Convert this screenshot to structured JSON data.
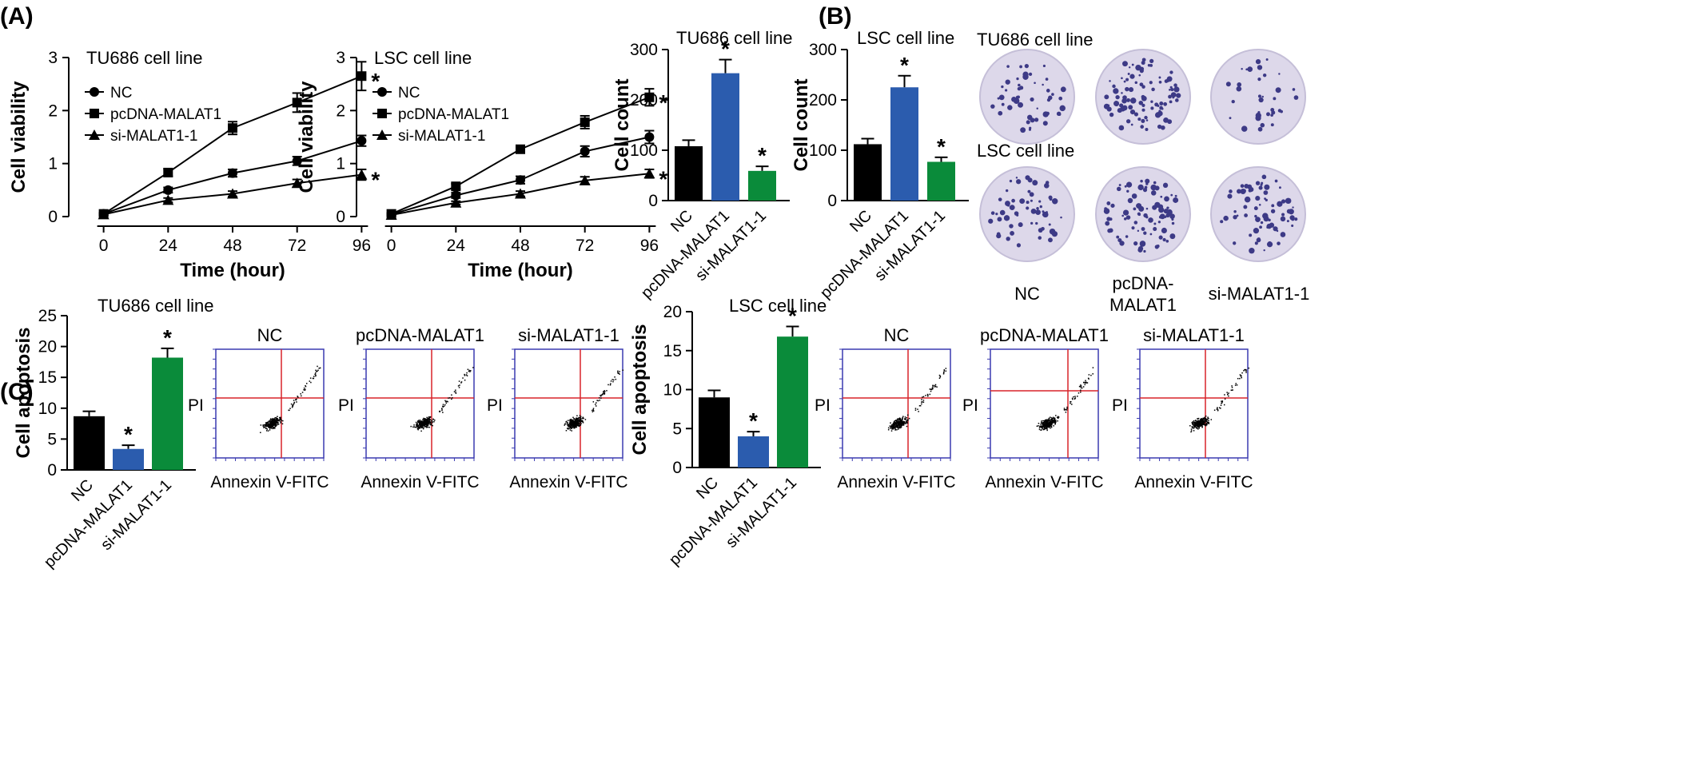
{
  "panel_letters": [
    "(A)",
    "(B)",
    "(C)"
  ],
  "chart_data": [
    {
      "id": "A1",
      "type": "line",
      "title": "TU686 cell line",
      "xlabel": "Time (hour)",
      "ylabel": "Cell viability",
      "x": [
        0,
        24,
        48,
        72,
        96
      ],
      "ylim": [
        0,
        3
      ],
      "yticks": [
        0,
        1,
        2,
        3
      ],
      "legend_position": "top-left",
      "grid": false,
      "series": [
        {
          "name": "NC",
          "marker": "circle",
          "values": [
            0.05,
            0.5,
            0.82,
            1.05,
            1.43
          ],
          "errors": [
            0.02,
            0.05,
            0.07,
            0.08,
            0.1
          ]
        },
        {
          "name": "pcDNA-MALAT1",
          "marker": "square",
          "values": [
            0.05,
            0.83,
            1.67,
            2.15,
            2.65
          ],
          "errors": [
            0.02,
            0.07,
            0.12,
            0.18,
            0.27
          ],
          "star_at_end": "*"
        },
        {
          "name": "si-MALAT1-1",
          "marker": "triangle",
          "values": [
            0.04,
            0.31,
            0.43,
            0.63,
            0.79
          ],
          "errors": [
            0.02,
            0.04,
            0.05,
            0.07,
            0.1
          ],
          "star_at_end": "*"
        }
      ]
    },
    {
      "id": "A2",
      "type": "line",
      "title": "LSC cell line",
      "xlabel": "Time (hour)",
      "ylabel": "Cell viability",
      "x": [
        0,
        24,
        48,
        72,
        96
      ],
      "ylim": [
        0,
        3
      ],
      "yticks": [
        0,
        1,
        2,
        3
      ],
      "legend_position": "top-left",
      "grid": false,
      "series": [
        {
          "name": "NC",
          "marker": "circle",
          "values": [
            0.04,
            0.4,
            0.69,
            1.23,
            1.5
          ],
          "errors": [
            0.02,
            0.05,
            0.07,
            0.1,
            0.12
          ]
        },
        {
          "name": "pcDNA-MALAT1",
          "marker": "square",
          "values": [
            0.05,
            0.57,
            1.27,
            1.78,
            2.25
          ],
          "errors": [
            0.02,
            0.05,
            0.07,
            0.12,
            0.16
          ],
          "star_at_end": "*"
        },
        {
          "name": "si-MALAT1-1",
          "marker": "triangle",
          "values": [
            0.03,
            0.26,
            0.43,
            0.68,
            0.81
          ],
          "errors": [
            0.02,
            0.03,
            0.05,
            0.07,
            0.08
          ],
          "star_at_end": "*"
        }
      ]
    },
    {
      "id": "B1",
      "type": "bar",
      "title": "TU686 cell line",
      "ylabel": "Cell count",
      "categories": [
        "NC",
        "pcDNA-MALAT1",
        "si-MALAT1-1"
      ],
      "values": [
        108,
        253,
        59
      ],
      "errors": [
        12,
        27,
        9
      ],
      "stars": [
        "",
        "*",
        "*"
      ],
      "colors": [
        "#000000",
        "#2b5cae",
        "#0a8b3a"
      ],
      "ylim": [
        0,
        300
      ],
      "yticks": [
        0,
        100,
        200,
        300
      ]
    },
    {
      "id": "B2",
      "type": "bar",
      "title": "LSC cell line",
      "ylabel": "Cell count",
      "categories": [
        "NC",
        "pcDNA-MALAT1",
        "si-MALAT1-1"
      ],
      "values": [
        112,
        225,
        77
      ],
      "errors": [
        11,
        23,
        9
      ],
      "stars": [
        "",
        "*",
        "*"
      ],
      "colors": [
        "#000000",
        "#2b5cae",
        "#0a8b3a"
      ],
      "ylim": [
        0,
        300
      ],
      "yticks": [
        0,
        100,
        200,
        300
      ]
    },
    {
      "id": "C1",
      "type": "bar",
      "title": "TU686 cell line",
      "ylabel": "Cell apoptosis",
      "categories": [
        "NC",
        "pcDNA-MALAT1",
        "si-MALAT1-1"
      ],
      "values": [
        8.7,
        3.4,
        18.2
      ],
      "errors": [
        0.8,
        0.6,
        1.5
      ],
      "stars": [
        "",
        "*",
        "*"
      ],
      "colors": [
        "#000000",
        "#2b5cae",
        "#0a8b3a"
      ],
      "ylim": [
        0,
        25
      ],
      "yticks": [
        0,
        5,
        10,
        15,
        20,
        25
      ]
    },
    {
      "id": "C2",
      "type": "bar",
      "title": "LSC cell line",
      "ylabel": "Cell apoptosis",
      "categories": [
        "NC",
        "pcDNA-MALAT1",
        "si-MALAT1-1"
      ],
      "values": [
        9.0,
        4.0,
        16.8
      ],
      "errors": [
        0.9,
        0.6,
        1.3
      ],
      "stars": [
        "",
        "*",
        "*"
      ],
      "colors": [
        "#000000",
        "#2b5cae",
        "#0a8b3a"
      ],
      "ylim": [
        0,
        20
      ],
      "yticks": [
        0,
        5,
        10,
        15,
        20
      ]
    }
  ],
  "colony_assay": {
    "rows": [
      "TU686 cell line",
      "LSC cell line"
    ],
    "columns": [
      "NC",
      "pcDNA-MALAT1",
      "si-MALAT1-1"
    ],
    "column_labels": [
      "NC",
      "pcDNA-\nMALAT1",
      "si-MALAT1-1"
    ],
    "plate_color": "#ddd8ea",
    "colony_color": "#3d3a86"
  },
  "flow_cytometry": {
    "xlabel": "Annexin V-FITC",
    "ylabel": "PI",
    "gate_color": "#d8242a",
    "axis_tick_color": "#3a3ab0",
    "panels": [
      {
        "group": "TU686 cell line",
        "title": "NC"
      },
      {
        "group": "TU686 cell line",
        "title": "pcDNA-MALAT1"
      },
      {
        "group": "TU686 cell line",
        "title": "si-MALAT1-1"
      },
      {
        "group": "LSC cell line",
        "title": "NC"
      },
      {
        "group": "LSC cell line",
        "title": "pcDNA-MALAT1"
      },
      {
        "group": "LSC cell line",
        "title": "si-MALAT1-1"
      }
    ]
  }
}
